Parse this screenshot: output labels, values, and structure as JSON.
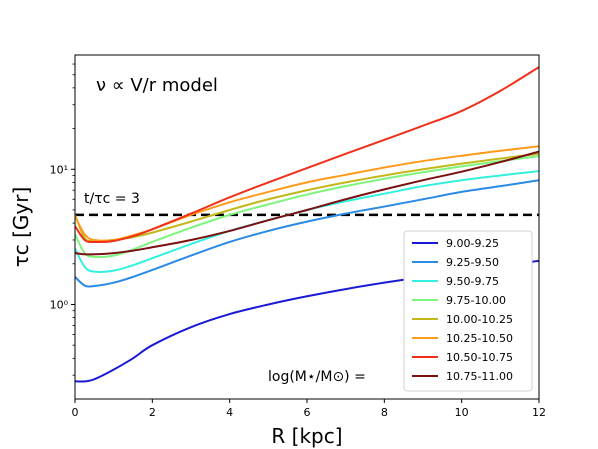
{
  "chart_data": {
    "type": "line",
    "title": "",
    "annotation_model": "ν ∝ V/r model",
    "annotation_ratio": "t/τc = 3",
    "legend_title": "log(M⋆/M⊙) =",
    "xlabel": "R [kpc]",
    "ylabel": "τc [Gyr]",
    "xlim": [
      0,
      12
    ],
    "ylim": [
      0.2,
      70
    ],
    "yscale": "log",
    "grid": false,
    "legend_position": "lower-right",
    "x_ticks": [
      0,
      2,
      4,
      6,
      8,
      10,
      12
    ],
    "y_ticks": [
      1,
      10
    ],
    "y_tick_labels": [
      "10⁰",
      "10¹"
    ],
    "reference_line": {
      "y": 4.6,
      "style": "dashed",
      "color": "#000000"
    },
    "x": [
      0,
      0.25,
      0.5,
      1,
      1.5,
      2,
      3,
      4,
      5,
      6,
      7,
      8,
      9,
      10,
      11,
      12
    ],
    "series": [
      {
        "name": "9.00-9.25",
        "color": "#1a1ad6",
        "values": [
          0.27,
          0.27,
          0.28,
          0.33,
          0.4,
          0.5,
          0.68,
          0.85,
          1.0,
          1.15,
          1.3,
          1.45,
          1.6,
          1.75,
          1.93,
          2.1
        ]
      },
      {
        "name": "9.25-9.50",
        "color": "#2a8ae6",
        "values": [
          1.6,
          1.38,
          1.37,
          1.45,
          1.6,
          1.8,
          2.3,
          2.9,
          3.5,
          4.1,
          4.7,
          5.3,
          6.0,
          6.8,
          7.5,
          8.3
        ]
      },
      {
        "name": "9.50-9.75",
        "color": "#33f0e0",
        "values": [
          2.6,
          1.9,
          1.75,
          1.78,
          1.95,
          2.2,
          2.8,
          3.5,
          4.2,
          5.0,
          5.8,
          6.6,
          7.5,
          8.3,
          9.0,
          9.7
        ]
      },
      {
        "name": "9.75-10.00",
        "color": "#7df57d",
        "values": [
          3.3,
          2.4,
          2.25,
          2.3,
          2.55,
          2.9,
          3.7,
          4.6,
          5.5,
          6.5,
          7.5,
          8.5,
          9.5,
          10.5,
          11.5,
          12.5
        ]
      },
      {
        "name": "10.00-10.25",
        "color": "#c2b81a",
        "values": [
          4.6,
          3.1,
          2.95,
          3.0,
          3.15,
          3.4,
          4.1,
          5.0,
          6.0,
          7.0,
          8.0,
          9.0,
          10.0,
          11.0,
          12.0,
          13.0
        ]
      },
      {
        "name": "10.25-10.50",
        "color": "#ff9a1a",
        "values": [
          4.5,
          3.3,
          3.0,
          3.0,
          3.25,
          3.6,
          4.6,
          5.7,
          6.8,
          8.0,
          9.1,
          10.3,
          11.5,
          12.6,
          13.7,
          14.8
        ]
      },
      {
        "name": "10.50-10.75",
        "color": "#f0301a",
        "values": [
          3.8,
          3.0,
          2.9,
          2.95,
          3.2,
          3.6,
          4.7,
          6.2,
          8.0,
          10.2,
          13.0,
          16.5,
          21.0,
          27.0,
          38.0,
          57.0
        ]
      },
      {
        "name": "10.75-11.00",
        "color": "#7a1010",
        "values": [
          2.4,
          2.35,
          2.35,
          2.4,
          2.5,
          2.65,
          3.0,
          3.5,
          4.2,
          5.0,
          6.0,
          7.1,
          8.3,
          9.6,
          11.3,
          13.5
        ]
      }
    ]
  }
}
